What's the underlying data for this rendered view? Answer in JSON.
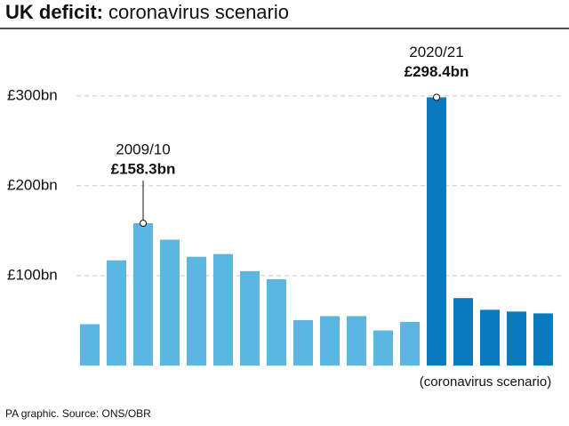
{
  "chart_data": {
    "type": "bar",
    "title": "UK deficit:",
    "subtitle": "coronavirus scenario",
    "categories": [
      null,
      null,
      "2009/10",
      null,
      null,
      null,
      null,
      null,
      null,
      null,
      null,
      null,
      null,
      "2020/21",
      null,
      null,
      null,
      null
    ],
    "values": [
      46,
      117,
      158.3,
      140,
      121,
      124,
      105,
      96,
      50.5,
      55,
      55,
      39,
      48.5,
      298.4,
      75,
      62,
      60,
      58
    ],
    "value_labels": [
      null,
      null,
      "£158.3bn",
      null,
      null,
      null,
      null,
      null,
      null,
      null,
      null,
      null,
      null,
      "£298.4bn",
      null,
      null,
      null,
      null
    ],
    "colors": [
      "#5bb6e1",
      "#5bb6e1",
      "#5bb6e1",
      "#5bb6e1",
      "#5bb6e1",
      "#5bb6e1",
      "#5bb6e1",
      "#5bb6e1",
      "#5bb6e1",
      "#5bb6e1",
      "#5bb6e1",
      "#5bb6e1",
      "#5bb6e1",
      "#0a7abd",
      "#0a7abd",
      "#0a7abd",
      "#0a7abd",
      "#0a7abd"
    ],
    "ylim": [
      0,
      375
    ],
    "yticks": [
      {
        "value": 100,
        "label": "£100bn"
      },
      {
        "value": 200,
        "label": "£200bn"
      },
      {
        "value": 300,
        "label": "£300bn"
      }
    ],
    "grid": true,
    "annotation": "(coronavirus scenario)",
    "source": "PA graphic. Source: ONS/OBR"
  }
}
